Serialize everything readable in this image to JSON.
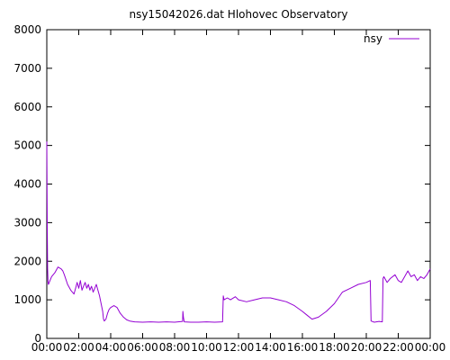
{
  "chart_data": {
    "type": "line",
    "title": "nsy15042026.dat Hlohovec Observatory",
    "xlabel": "",
    "ylabel": "",
    "x_unit": "hours",
    "xlim": [
      0,
      24
    ],
    "ylim": [
      0,
      8000
    ],
    "grid": false,
    "legend_position": "top-right",
    "x_ticks": [
      {
        "value": 0,
        "label": "00:00"
      },
      {
        "value": 2,
        "label": "02:00"
      },
      {
        "value": 4,
        "label": "04:00"
      },
      {
        "value": 6,
        "label": "06:00"
      },
      {
        "value": 8,
        "label": "08:00"
      },
      {
        "value": 10,
        "label": "10:00"
      },
      {
        "value": 12,
        "label": "12:00"
      },
      {
        "value": 14,
        "label": "14:00"
      },
      {
        "value": 16,
        "label": "16:00"
      },
      {
        "value": 18,
        "label": "18:00"
      },
      {
        "value": 20,
        "label": "20:00"
      },
      {
        "value": 22,
        "label": "22:00"
      },
      {
        "value": 24,
        "label": "00:00"
      }
    ],
    "y_ticks": [
      {
        "value": 0,
        "label": "0"
      },
      {
        "value": 1000,
        "label": "1000"
      },
      {
        "value": 2000,
        "label": "2000"
      },
      {
        "value": 3000,
        "label": "3000"
      },
      {
        "value": 4000,
        "label": "4000"
      },
      {
        "value": 5000,
        "label": "5000"
      },
      {
        "value": 6000,
        "label": "6000"
      },
      {
        "value": 7000,
        "label": "7000"
      },
      {
        "value": 8000,
        "label": "8000"
      }
    ],
    "series": [
      {
        "name": "nsy",
        "color": "#9400d3",
        "x": [
          0,
          0.03,
          0.05,
          0.08,
          0.1,
          0.3,
          0.5,
          0.7,
          0.9,
          1.0,
          1.1,
          1.3,
          1.5,
          1.7,
          1.8,
          1.9,
          2.0,
          2.1,
          2.2,
          2.3,
          2.4,
          2.5,
          2.6,
          2.7,
          2.8,
          2.9,
          3.0,
          3.1,
          3.3,
          3.5,
          3.55,
          3.6,
          3.7,
          3.8,
          3.9,
          4.0,
          4.2,
          4.4,
          4.6,
          4.8,
          5.0,
          5.2,
          5.5,
          6.0,
          6.5,
          7.0,
          7.5,
          8.0,
          8.5,
          8.52,
          8.55,
          8.6,
          9.0,
          9.5,
          10.0,
          10.5,
          11.0,
          11.05,
          11.1,
          11.3,
          11.5,
          11.8,
          12.0,
          12.5,
          13.0,
          13.5,
          14.0,
          14.5,
          15.0,
          15.5,
          16.0,
          16.3,
          16.6,
          17.0,
          17.5,
          18.0,
          18.5,
          19.0,
          19.5,
          20.0,
          20.25,
          20.3,
          20.5,
          20.8,
          21.0,
          21.05,
          21.1,
          21.3,
          21.5,
          21.8,
          22.0,
          22.2,
          22.4,
          22.6,
          22.8,
          23.0,
          23.2,
          23.4,
          23.6,
          23.8,
          24.0
        ],
        "values": [
          5100,
          2900,
          1800,
          1450,
          1400,
          1600,
          1700,
          1850,
          1800,
          1750,
          1650,
          1400,
          1250,
          1150,
          1300,
          1450,
          1300,
          1500,
          1250,
          1350,
          1450,
          1300,
          1400,
          1250,
          1350,
          1200,
          1300,
          1400,
          1100,
          700,
          500,
          450,
          500,
          650,
          750,
          800,
          850,
          800,
          650,
          550,
          480,
          450,
          430,
          420,
          430,
          420,
          430,
          420,
          440,
          700,
          550,
          430,
          420,
          420,
          430,
          420,
          430,
          1100,
          1000,
          1050,
          1000,
          1080,
          1000,
          950,
          1000,
          1050,
          1050,
          1000,
          950,
          850,
          700,
          600,
          500,
          550,
          700,
          900,
          1200,
          1300,
          1400,
          1450,
          1500,
          450,
          420,
          440,
          430,
          1550,
          1600,
          1450,
          1550,
          1650,
          1500,
          1450,
          1600,
          1750,
          1600,
          1650,
          1500,
          1600,
          1550,
          1650,
          1800
        ]
      }
    ]
  }
}
